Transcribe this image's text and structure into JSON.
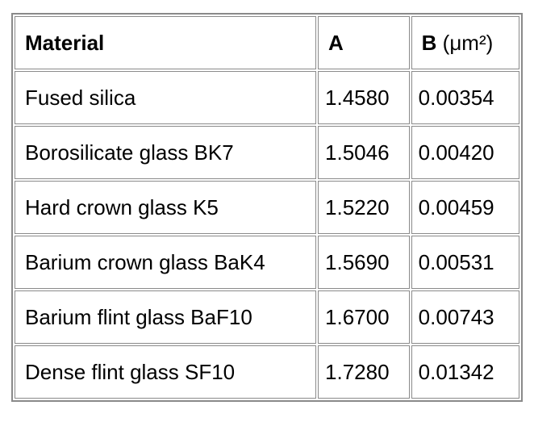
{
  "table": {
    "header": [
      "Material",
      "A",
      {
        "symbol": "B",
        "unit": "(μm²)"
      }
    ],
    "rows": [
      [
        "Fused silica",
        "1.4580",
        "0.00354"
      ],
      [
        "Borosilicate glass BK7",
        "1.5046",
        "0.00420"
      ],
      [
        "Hard crown glass K5",
        "1.5220",
        "0.00459"
      ],
      [
        "Barium crown glass BaK4",
        "1.5690",
        "0.00531"
      ],
      [
        "Barium flint glass BaF10",
        "1.6700",
        "0.00743"
      ],
      [
        "Dense flint glass SF10",
        "1.7280",
        "0.01342"
      ]
    ]
  }
}
